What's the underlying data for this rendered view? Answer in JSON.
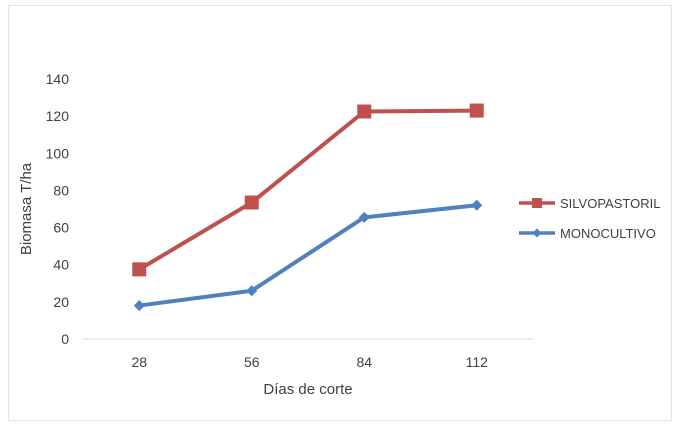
{
  "chart_data": {
    "type": "line",
    "categories": [
      "28",
      "56",
      "84",
      "112"
    ],
    "series": [
      {
        "name": "SILVOPASTORIL",
        "values": [
          37.5,
          73.5,
          122.5,
          123
        ],
        "color": "#c0504d",
        "marker": "square"
      },
      {
        "name": "MONOCULTIVO",
        "values": [
          18,
          26,
          65.5,
          72
        ],
        "color": "#4f81bd",
        "marker": "diamond"
      }
    ],
    "yticks": [
      "0",
      "20",
      "40",
      "60",
      "80",
      "100",
      "120",
      "140"
    ],
    "ylim": [
      0,
      140
    ],
    "xlabel": "Días de corte",
    "ylabel": "Biomasa T/ha",
    "grid": false,
    "legend": "right"
  }
}
